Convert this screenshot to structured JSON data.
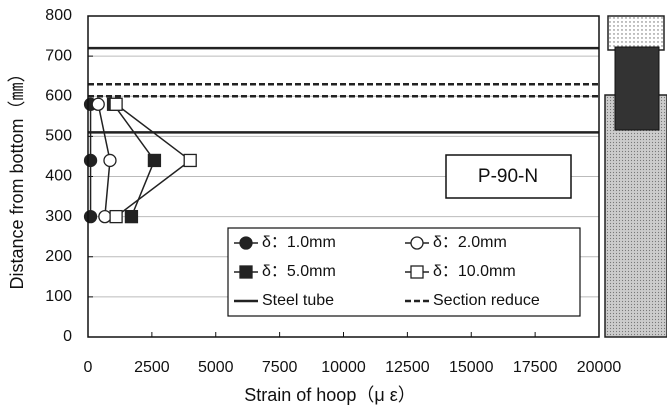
{
  "chart_data": {
    "type": "line",
    "xlabel": "Strain of hoop（μ ε）",
    "ylabel": "Distance from bottom（㎜）",
    "annotation": "P-90-N",
    "xlim": [
      0,
      20000
    ],
    "xticks": [
      0,
      2500,
      5000,
      7500,
      10000,
      12500,
      15000,
      17500,
      20000
    ],
    "ylim": [
      0,
      800
    ],
    "yticks": [
      0,
      100,
      200,
      300,
      400,
      500,
      600,
      700,
      800
    ],
    "grid": true,
    "series": [
      {
        "name": "δ：1.0mm",
        "color": "#222222",
        "marker": "circle-filled",
        "x": [
          100,
          100,
          100
        ],
        "values": [
          580,
          440,
          300
        ]
      },
      {
        "name": "δ：2.0mm",
        "color": "#222222",
        "marker": "circle-open",
        "x": [
          400,
          860,
          660
        ],
        "values": [
          580,
          440,
          300
        ]
      },
      {
        "name": "δ：5.0mm",
        "color": "#222222",
        "marker": "square-filled",
        "x": [
          1000,
          2600,
          1700
        ],
        "values": [
          580,
          440,
          300
        ]
      },
      {
        "name": "δ：10.0mm",
        "color": "#222222",
        "marker": "square-open",
        "x": [
          1100,
          4000,
          1100
        ],
        "values": [
          580,
          440,
          300
        ]
      }
    ],
    "reference_lines": [
      {
        "name": "Steel tube",
        "style": "solid",
        "values": [
          720,
          510
        ]
      },
      {
        "name": "Section reduce",
        "style": "dashed",
        "values": [
          630,
          600
        ]
      }
    ]
  }
}
